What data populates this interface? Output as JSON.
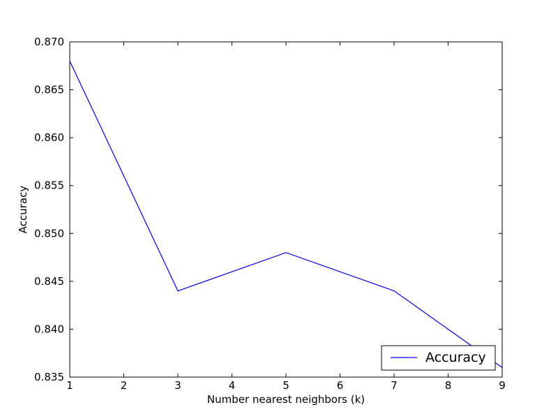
{
  "chart_data": {
    "type": "line",
    "title": "",
    "xlabel": "Number nearest neighbors (k)",
    "ylabel": "Accuracy",
    "xlim": [
      1,
      9
    ],
    "ylim": [
      0.835,
      0.87
    ],
    "xticks": [
      1,
      2,
      3,
      4,
      5,
      6,
      7,
      8,
      9
    ],
    "yticks": [
      "0.835",
      "0.840",
      "0.845",
      "0.850",
      "0.855",
      "0.860",
      "0.865",
      "0.870"
    ],
    "grid": false,
    "legend_position": "bottom-right",
    "series": [
      {
        "name": "Accuracy",
        "color": "#0000ff",
        "x": [
          1,
          3,
          5,
          7,
          9
        ],
        "y": [
          0.868,
          0.844,
          0.848,
          0.844,
          0.836
        ]
      }
    ]
  }
}
